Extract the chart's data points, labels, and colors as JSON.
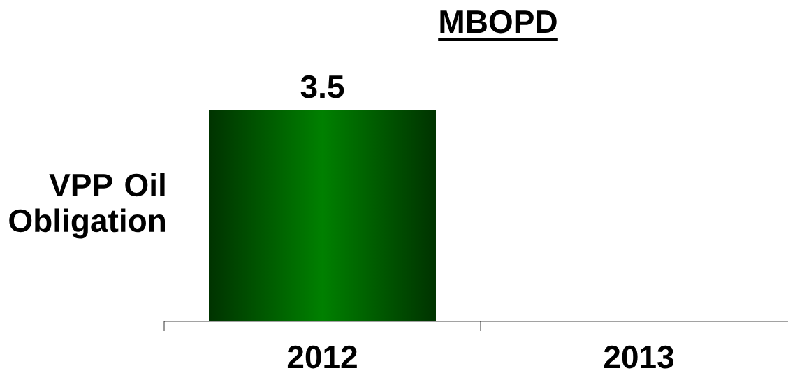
{
  "chart_data": {
    "type": "bar",
    "title": "MBOPD",
    "ylabel": "VPP Oil Obligation",
    "categories": [
      "2012",
      "2013"
    ],
    "values": [
      3.5,
      null
    ],
    "color": "#008000",
    "data_labels": true
  }
}
